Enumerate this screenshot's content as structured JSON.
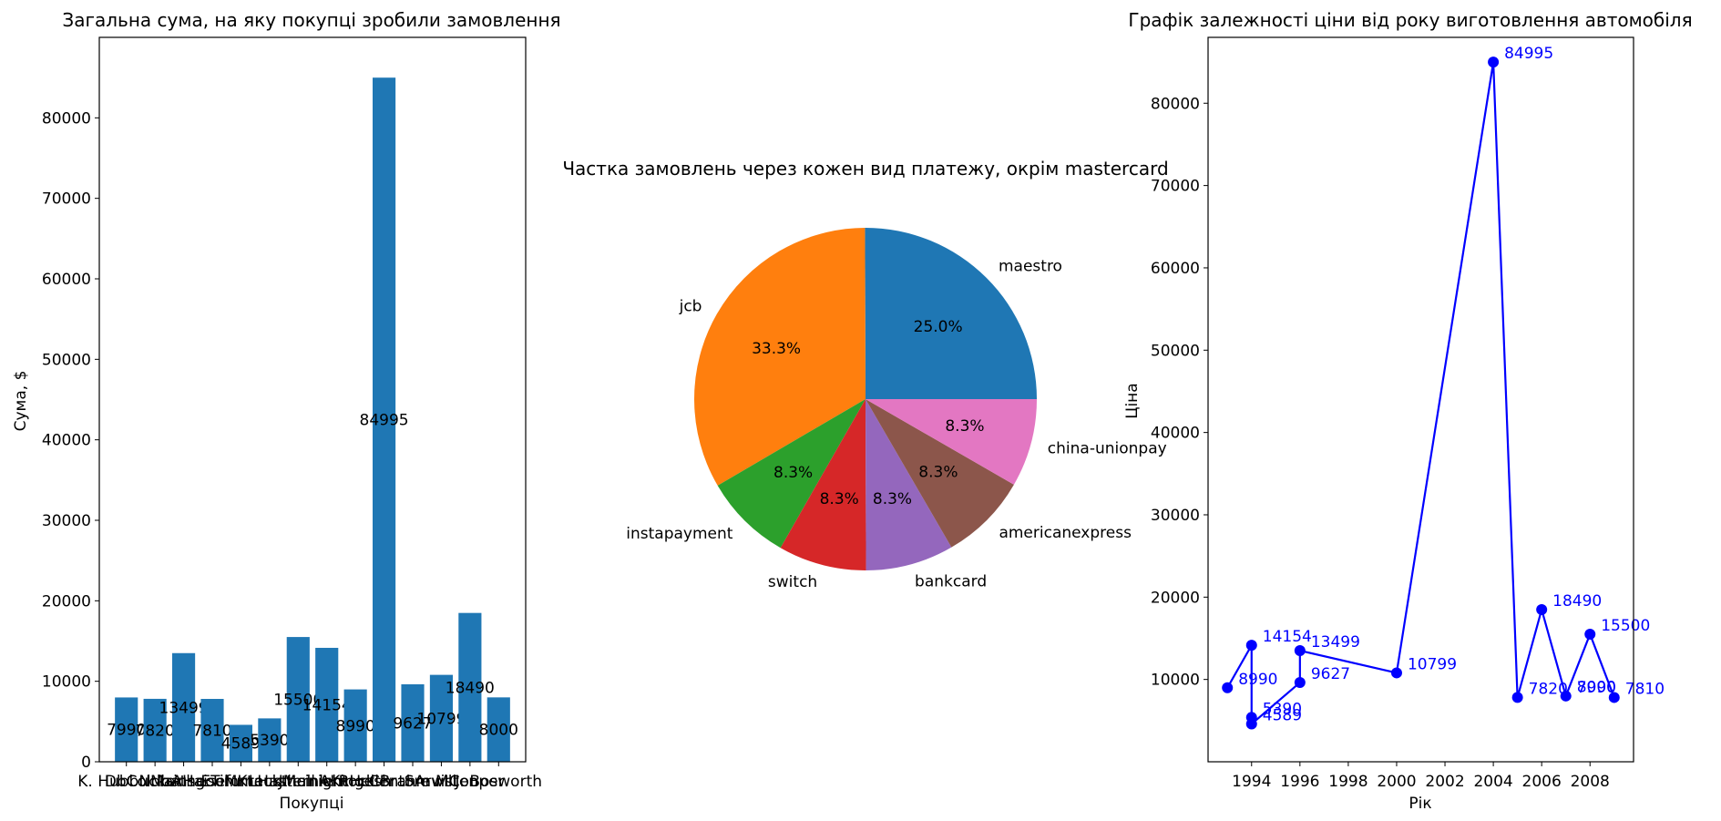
{
  "chart_data": [
    {
      "type": "bar",
      "title": "Загальна сума, на яку покупці зробили замовлення",
      "xlabel": "Покупці",
      "ylabel": "Сума, $",
      "ylim": [
        0,
        90000
      ],
      "yticks": [
        0,
        10000,
        20000,
        30000,
        40000,
        50000,
        60000,
        70000,
        80000
      ],
      "grid": false,
      "color": "#1f77b4",
      "categories": [
        "K. Hubbucke",
        "D. Coldbathe",
        "N. Mainsgool",
        "A. Haisefurt",
        "E. Timmeck",
        "M. Krausthall",
        "L. Hasternight",
        "J. Mcinlemock",
        "A. Kingesh",
        "R. Hellentore",
        "C. Brahmwill",
        "S. Arvisten",
        "M. Cooper",
        "J. Bosworth"
      ],
      "visible_tick_labels": [
        "K. Hubbucke",
        "DbColdbathe",
        "NMainsgool",
        "AHaisefurt",
        "ETimmeck",
        "MKrausthall",
        "LHasternight",
        "JMcinlemock",
        "AKingesh",
        "RHellentore",
        "CBrahmwill",
        "SArvisten",
        "MCooper",
        "J. Bosworth"
      ],
      "values": [
        7990,
        7820,
        13499,
        7810,
        4589,
        5390,
        15500,
        14154,
        8990,
        84995,
        9627,
        10799,
        18490,
        8000
      ],
      "data_labels": [
        "7990",
        "7820",
        "13499",
        "7810",
        "4589",
        "5390",
        "15500",
        "14154",
        "8990",
        "84995",
        "9627",
        "10799",
        "18490",
        "8000"
      ]
    },
    {
      "type": "pie",
      "title": "Частка замовлень через кожен вид платежу, окрім mastercard",
      "slices": [
        {
          "label": "maestro",
          "value": 25.0,
          "pct": "25.0%",
          "color": "#1f77b4"
        },
        {
          "label": "jcb",
          "value": 33.3,
          "pct": "33.3%",
          "color": "#ff7f0e"
        },
        {
          "label": "instapayment",
          "value": 8.3,
          "pct": "8.3%",
          "color": "#2ca02c"
        },
        {
          "label": "switch",
          "value": 8.3,
          "pct": "8.3%",
          "color": "#d62728"
        },
        {
          "label": "bankcard",
          "value": 8.3,
          "pct": "8.3%",
          "color": "#9467bd"
        },
        {
          "label": "americanexpress",
          "value": 8.3,
          "pct": "8.3%",
          "color": "#8c564b"
        },
        {
          "label": "china-unionpay",
          "value": 8.3,
          "pct": "8.3%",
          "color": "#e377c2"
        }
      ]
    },
    {
      "type": "line",
      "title": "Графік залежності ціни від року виготовлення автомобіля",
      "xlabel": "Рік",
      "ylabel": "Ціна",
      "xlim": [
        1992.2,
        2009.8
      ],
      "ylim": [
        0,
        88000
      ],
      "xticks": [
        1994,
        1996,
        1998,
        2000,
        2002,
        2004,
        2006,
        2008
      ],
      "yticks": [
        10000,
        20000,
        30000,
        40000,
        50000,
        60000,
        70000,
        80000
      ],
      "grid": false,
      "color": "#0000ff",
      "x": [
        1993,
        1994,
        1994,
        1994,
        1996,
        1996,
        2000,
        2004,
        2005,
        2006,
        2007,
        2008,
        2009
      ],
      "y": [
        8990,
        14154,
        5390,
        4589,
        9627,
        13499,
        10799,
        84995,
        7820,
        18490,
        7990,
        15500,
        7810
      ],
      "data_labels": [
        "8990",
        "14154",
        "5390",
        "4589",
        "9627",
        "13499",
        "10799",
        "84995",
        "7820",
        "18490",
        "7990",
        "15500",
        "7810"
      ],
      "extra_labels": [
        {
          "x": 2007,
          "y": 8000,
          "text": "8000"
        }
      ]
    }
  ]
}
